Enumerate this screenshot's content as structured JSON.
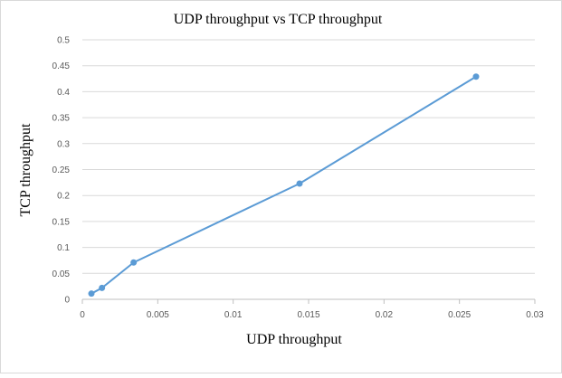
{
  "chart_data": {
    "type": "line",
    "title": "UDP throughput vs TCP throughput",
    "xlabel": "UDP throughput",
    "ylabel": "TCP throughput",
    "xlim": [
      0,
      0.03
    ],
    "ylim": [
      0,
      0.5
    ],
    "x_ticks": [
      "0",
      "0.005",
      "0.01",
      "0.015",
      "0.02",
      "0.025",
      "0.03"
    ],
    "y_ticks": [
      "0",
      "0.05",
      "0.1",
      "0.15",
      "0.2",
      "0.25",
      "0.3",
      "0.35",
      "0.4",
      "0.45",
      "0.5"
    ],
    "grid": "horizontal",
    "legend": "none",
    "series": [
      {
        "color": "#5b9bd5",
        "points": [
          {
            "x": 0.0006,
            "y": 0.011
          },
          {
            "x": 0.0013,
            "y": 0.022
          },
          {
            "x": 0.0034,
            "y": 0.071
          },
          {
            "x": 0.0144,
            "y": 0.223
          },
          {
            "x": 0.0261,
            "y": 0.429
          }
        ]
      }
    ]
  }
}
